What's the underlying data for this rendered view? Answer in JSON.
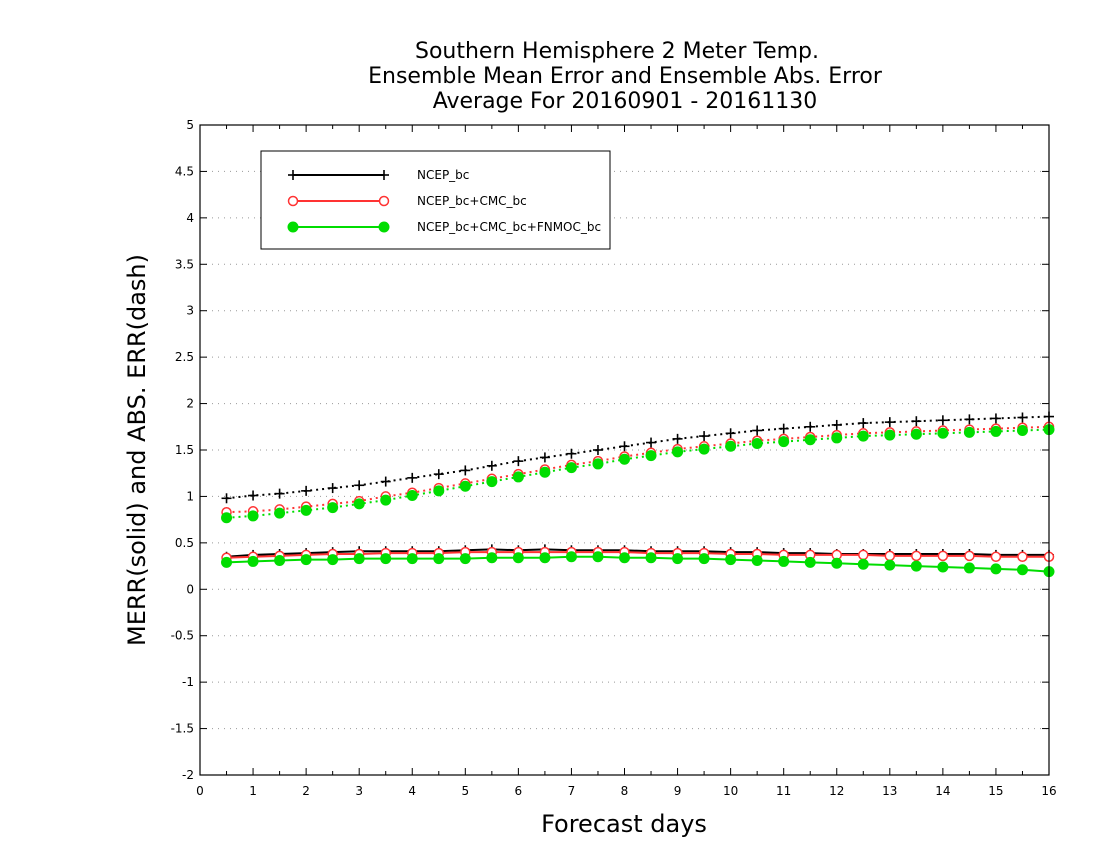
{
  "chart_data": {
    "type": "line",
    "title_lines": [
      "Southern Hemisphere 2 Meter Temp.",
      "Ensemble Mean Error and Ensemble Abs. Error",
      "Average For 20160901 - 20161130"
    ],
    "xlabel": "Forecast days",
    "ylabel": "MERR(solid) and ABS. ERR(dash)",
    "xlim": [
      0,
      16
    ],
    "ylim": [
      -2,
      5
    ],
    "xticks": [
      "0",
      "1",
      "2",
      "3",
      "4",
      "5",
      "6",
      "7",
      "8",
      "9",
      "10",
      "11",
      "12",
      "13",
      "14",
      "15",
      "16"
    ],
    "yticks": [
      "-2",
      "-1.5",
      "-1",
      "-0.5",
      "0",
      "0.5",
      "1",
      "1.5",
      "2",
      "2.5",
      "3",
      "3.5",
      "4",
      "4.5",
      "5"
    ],
    "grid": "horizontal-dotted",
    "legend_position": "top-left",
    "x": [
      0.5,
      1,
      1.5,
      2,
      2.5,
      3,
      3.5,
      4,
      4.5,
      5,
      5.5,
      6,
      6.5,
      7,
      7.5,
      8,
      8.5,
      9,
      9.5,
      10,
      10.5,
      11,
      11.5,
      12,
      12.5,
      13,
      13.5,
      14,
      14.5,
      15,
      15.5,
      16
    ],
    "series": [
      {
        "name": "NCEP_bc",
        "color": "#000000",
        "marker": "plus",
        "merr": [
          0.35,
          0.37,
          0.38,
          0.39,
          0.4,
          0.41,
          0.41,
          0.41,
          0.41,
          0.42,
          0.43,
          0.42,
          0.43,
          0.42,
          0.42,
          0.42,
          0.41,
          0.41,
          0.41,
          0.4,
          0.4,
          0.39,
          0.39,
          0.38,
          0.38,
          0.38,
          0.38,
          0.38,
          0.38,
          0.37,
          0.37,
          0.37
        ],
        "abs_err": [
          0.98,
          1.01,
          1.03,
          1.06,
          1.09,
          1.12,
          1.16,
          1.2,
          1.24,
          1.28,
          1.33,
          1.38,
          1.42,
          1.46,
          1.5,
          1.54,
          1.58,
          1.62,
          1.65,
          1.68,
          1.71,
          1.73,
          1.75,
          1.77,
          1.79,
          1.8,
          1.81,
          1.82,
          1.83,
          1.84,
          1.85,
          1.86
        ]
      },
      {
        "name": "NCEP_bc+CMC_bc",
        "color": "#ff3333",
        "marker": "open-circle",
        "merr": [
          0.34,
          0.35,
          0.36,
          0.37,
          0.38,
          0.38,
          0.39,
          0.39,
          0.39,
          0.4,
          0.4,
          0.4,
          0.4,
          0.4,
          0.4,
          0.4,
          0.39,
          0.39,
          0.39,
          0.38,
          0.38,
          0.37,
          0.37,
          0.37,
          0.37,
          0.36,
          0.36,
          0.36,
          0.36,
          0.35,
          0.35,
          0.35
        ],
        "abs_err": [
          0.83,
          0.84,
          0.86,
          0.89,
          0.92,
          0.95,
          1.0,
          1.04,
          1.09,
          1.14,
          1.19,
          1.24,
          1.29,
          1.34,
          1.38,
          1.43,
          1.47,
          1.51,
          1.54,
          1.57,
          1.6,
          1.62,
          1.64,
          1.66,
          1.68,
          1.69,
          1.7,
          1.71,
          1.72,
          1.73,
          1.74,
          1.75
        ]
      },
      {
        "name": "NCEP_bc+CMC_bc+FNMOC_bc",
        "color": "#00dd00",
        "marker": "filled-circle",
        "merr": [
          0.29,
          0.3,
          0.31,
          0.32,
          0.32,
          0.33,
          0.33,
          0.33,
          0.33,
          0.33,
          0.34,
          0.34,
          0.34,
          0.35,
          0.35,
          0.34,
          0.34,
          0.33,
          0.33,
          0.32,
          0.31,
          0.3,
          0.29,
          0.28,
          0.27,
          0.26,
          0.25,
          0.24,
          0.23,
          0.22,
          0.21,
          0.19
        ],
        "abs_err": [
          0.77,
          0.79,
          0.82,
          0.85,
          0.88,
          0.92,
          0.96,
          1.01,
          1.06,
          1.11,
          1.16,
          1.21,
          1.26,
          1.31,
          1.35,
          1.4,
          1.44,
          1.48,
          1.51,
          1.54,
          1.57,
          1.59,
          1.61,
          1.63,
          1.65,
          1.66,
          1.67,
          1.68,
          1.69,
          1.7,
          1.71,
          1.72
        ]
      }
    ]
  }
}
